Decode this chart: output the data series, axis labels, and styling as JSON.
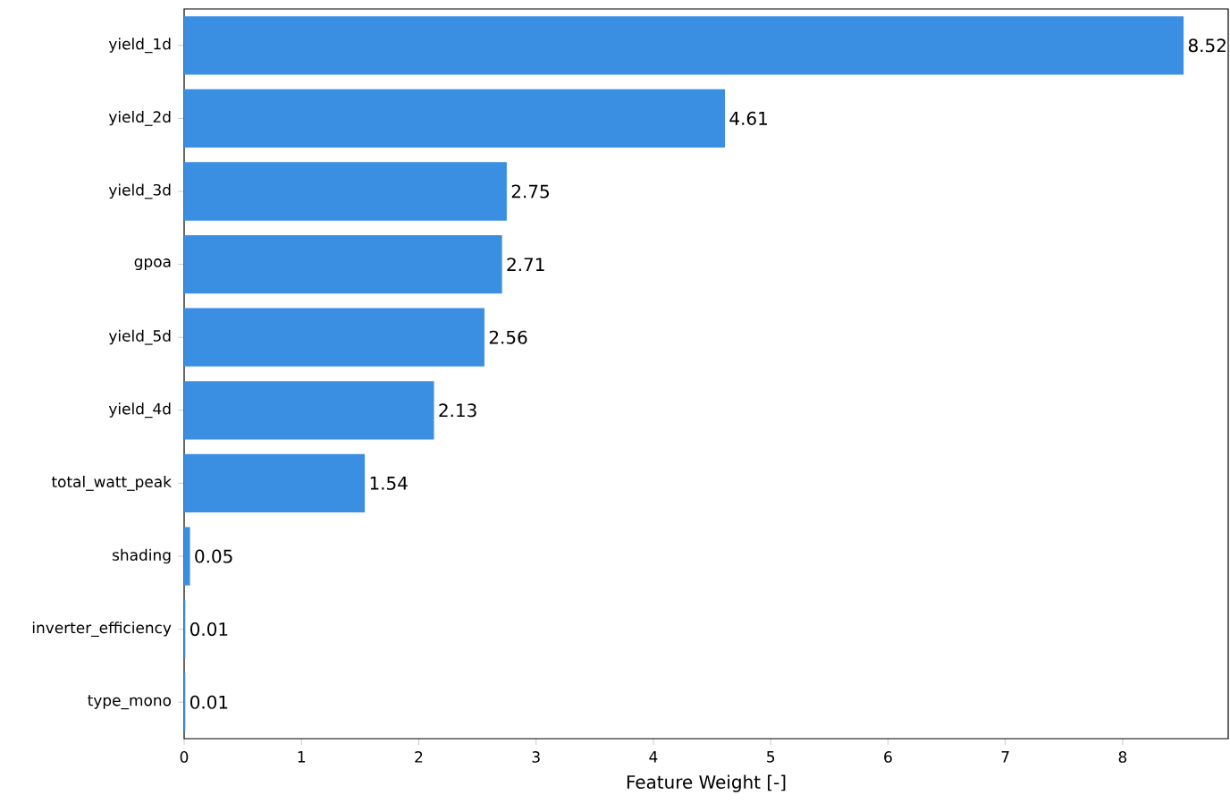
{
  "chart_data": {
    "type": "bar",
    "orientation": "horizontal",
    "xlabel": "Feature Weight [-]",
    "categories": [
      "yield_1d",
      "yield_2d",
      "yield_3d",
      "gpoa",
      "yield_5d",
      "yield_4d",
      "total_watt_peak",
      "shading",
      "inverter_efficiency",
      "type_mono"
    ],
    "values": [
      8.52,
      4.61,
      2.75,
      2.71,
      2.56,
      2.13,
      1.54,
      0.05,
      0.01,
      0.01
    ],
    "color": "#3a8fe3",
    "data_labels": true,
    "xlim": [
      0,
      8.9
    ],
    "xticks": [
      0,
      1,
      2,
      3,
      4,
      5,
      6,
      7,
      8
    ]
  }
}
